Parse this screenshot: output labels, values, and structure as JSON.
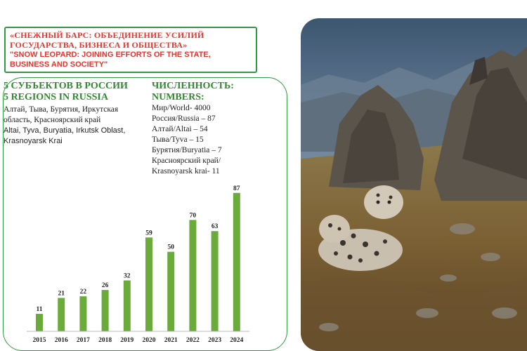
{
  "header": {
    "title_ru": "«СНЕЖНЫЙ БАРС: ОБЪЕДИНЕНИЕ УСИЛИЙ ГОСУДАРСТВА, БИЗНЕСА И ОБЩЕСТВА»",
    "title_en": "\"SNOW LEOPARD: JOINING EFFORTS OF THE STATE, BUSINESS AND SOCIETY\""
  },
  "regions": {
    "heading_ru": "5 СУБЪЕКТОВ В РОССИИ",
    "heading_en": "5 REGIONS IN RUSSIA",
    "list_ru": "Алтай, Тыва, Бурятия, Иркутская область, Красноярский край",
    "list_en": "Altai, Tyva, Buryatia, Irkutsk Oblast, Krasnoyarsk Krai"
  },
  "numbers": {
    "heading_ru": "ЧИСЛЕННОСТЬ:",
    "heading_en": "NUMBERS:",
    "items": [
      "Мир/World- 4000",
      "Россия/Russia – 87",
      "Алтай/Altai – 54",
      "Тыва/Tyva – 15",
      "Бурятия/Buryatia – 7",
      "Красноярский край/",
      "Krasnoyarsk krai- 11"
    ]
  },
  "chart_data": {
    "type": "bar",
    "categories": [
      "2015",
      "2016",
      "2017",
      "2018",
      "2019",
      "2020",
      "2021",
      "2022",
      "2023",
      "2024"
    ],
    "values": [
      11,
      21,
      22,
      26,
      32,
      59,
      50,
      70,
      63,
      87
    ],
    "title": "",
    "xlabel": "",
    "ylabel": "",
    "ylim": [
      0,
      90
    ],
    "grid": false,
    "bar_color": "#6aab3c"
  },
  "colors": {
    "accent_green": "#2e9a3e",
    "title_red": "#e8342c",
    "bar_green": "#6aab3c"
  }
}
